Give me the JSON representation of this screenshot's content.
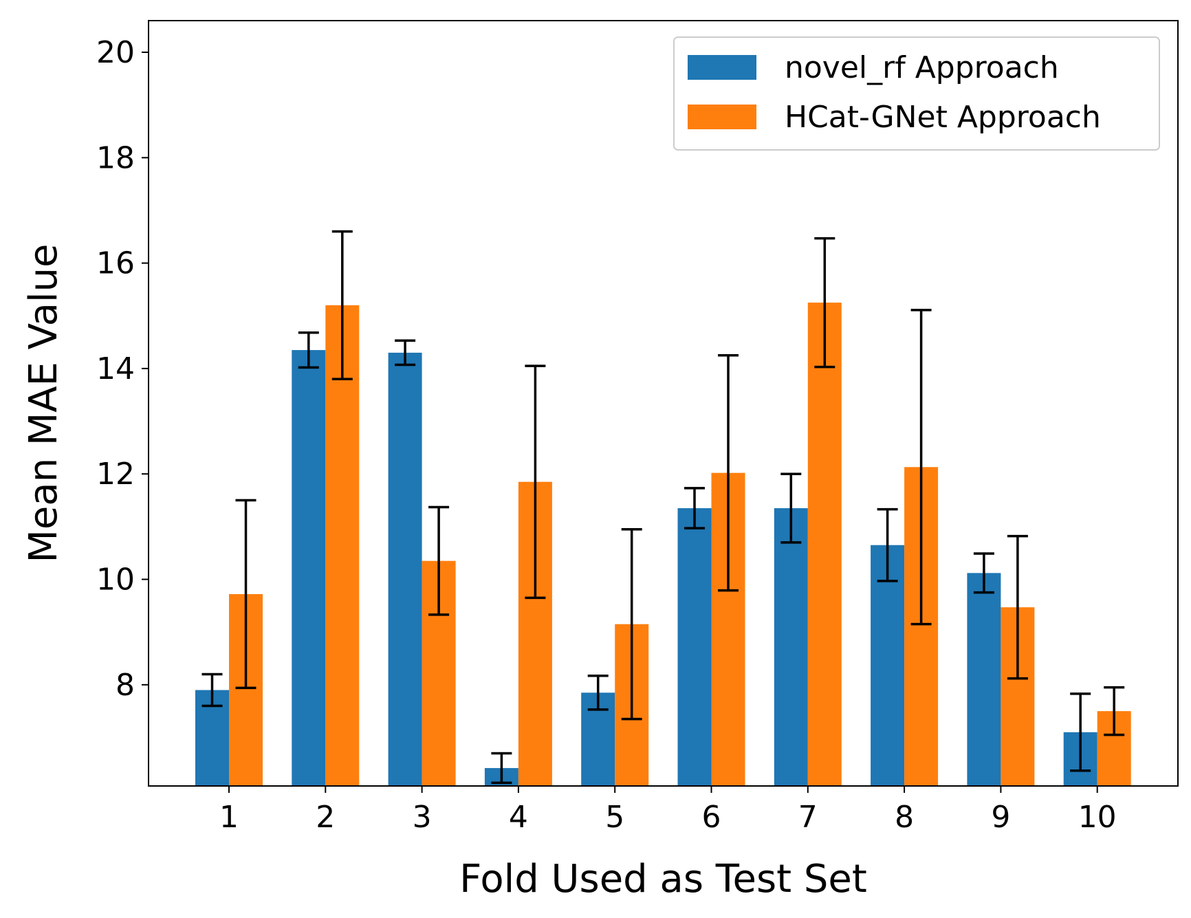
{
  "chart_data": {
    "type": "bar",
    "title": "",
    "xlabel": "Fold Used as Test Set",
    "ylabel": "Mean MAE Value",
    "categories": [
      "1",
      "2",
      "3",
      "4",
      "5",
      "6",
      "7",
      "8",
      "9",
      "10"
    ],
    "ylim": [
      6.08,
      20.6
    ],
    "yticks": [
      "8",
      "10",
      "12",
      "14",
      "16",
      "18",
      "20"
    ],
    "grid": false,
    "legend_position": "top-right",
    "series": [
      {
        "name": "novel_rf Approach",
        "color": "#1f77b4",
        "values": [
          7.9,
          14.35,
          14.3,
          6.42,
          7.85,
          11.35,
          11.35,
          10.65,
          10.12,
          7.1
        ],
        "errors": [
          0.3,
          0.33,
          0.23,
          0.28,
          0.32,
          0.38,
          0.65,
          0.68,
          0.37,
          0.73
        ]
      },
      {
        "name": "HCat-GNet Approach",
        "color": "#ff7f0e",
        "values": [
          9.72,
          15.2,
          10.35,
          11.85,
          9.15,
          12.02,
          15.25,
          12.13,
          9.47,
          7.5
        ],
        "errors": [
          1.78,
          1.4,
          1.02,
          2.2,
          1.8,
          2.23,
          1.22,
          2.98,
          1.35,
          0.45
        ]
      }
    ]
  }
}
